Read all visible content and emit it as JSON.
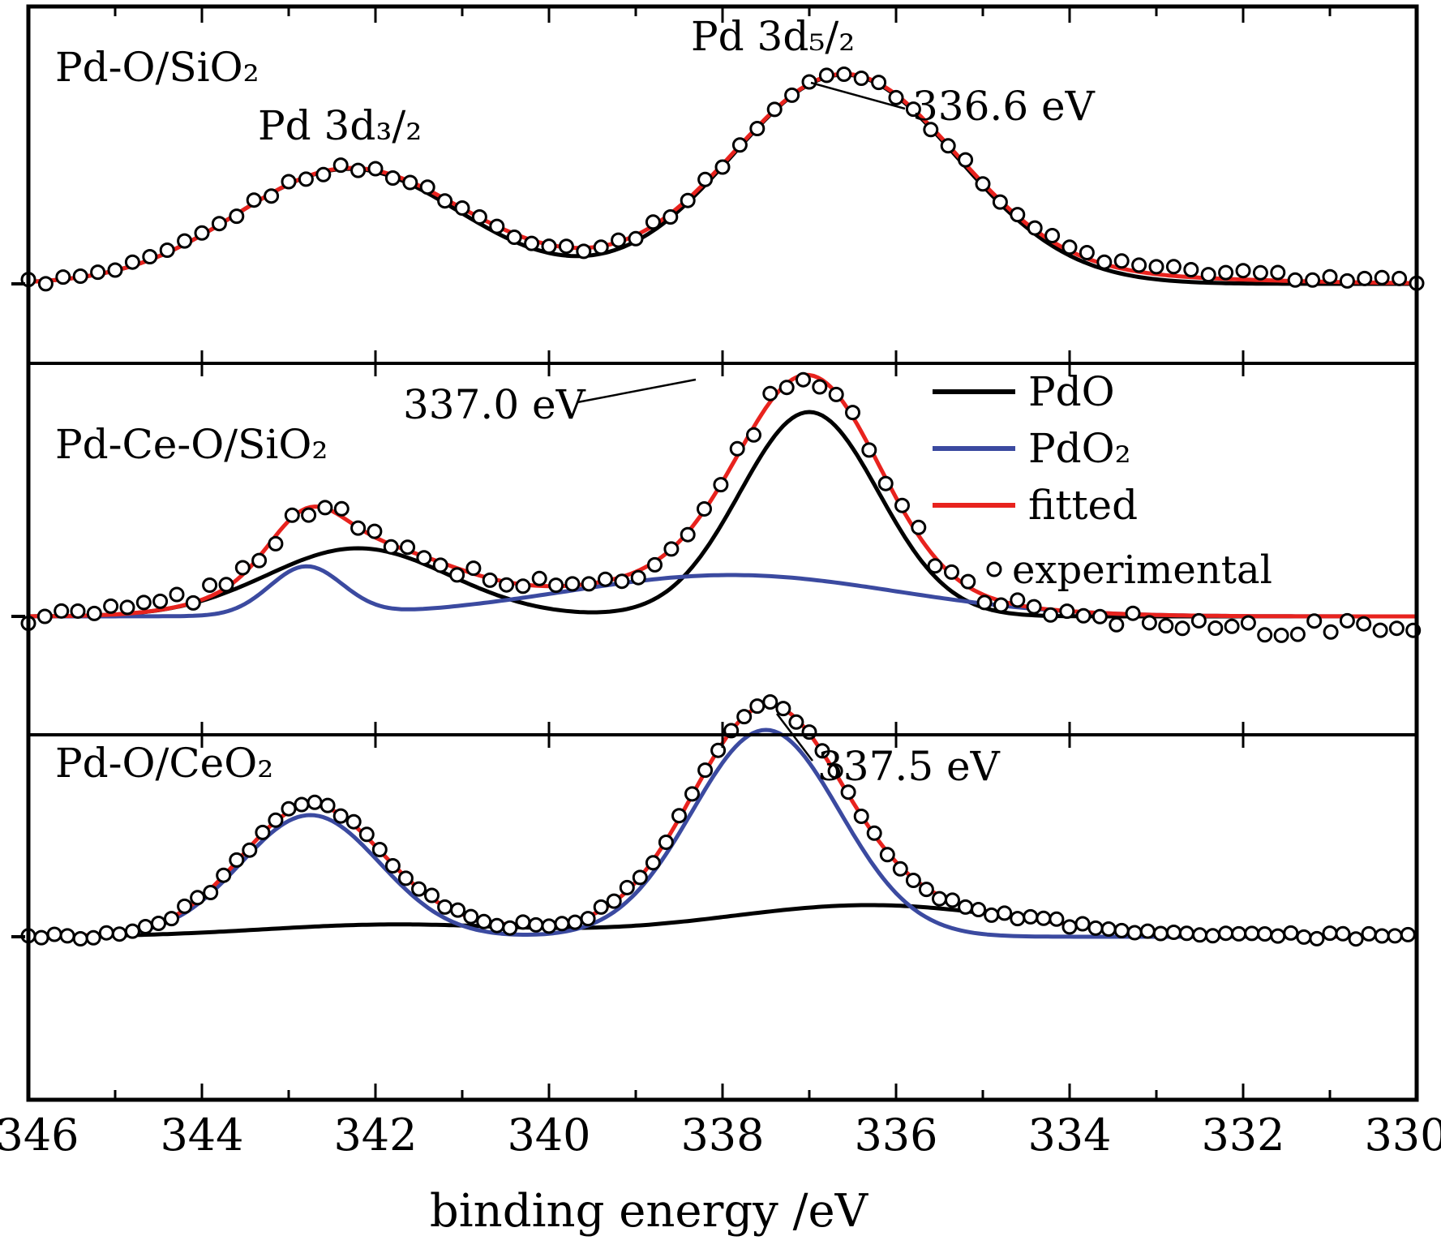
{
  "chart_data": {
    "type": "line",
    "title": "",
    "x_axis": {
      "label": "binding energy /eV",
      "min": 330,
      "max": 346,
      "reversed": true,
      "major_ticks": [
        346,
        344,
        342,
        340,
        338,
        336,
        334,
        332,
        330
      ],
      "minor_ticks": [
        345,
        343,
        341,
        339,
        337,
        335,
        333,
        331
      ],
      "tick_labels": [
        "346",
        "344",
        "342",
        "340",
        "338",
        "336",
        "334",
        "332",
        "330"
      ]
    },
    "y_axis": {
      "label": "",
      "tick_labels": []
    },
    "colors": {
      "pdo": "#000000",
      "pdo2": "#3b4aa0",
      "fitted": "#e8231e",
      "experimental_fill": "#ffffff",
      "experimental_stroke": "#000000"
    },
    "legend": {
      "items": [
        {
          "key": "pdo",
          "label": "PdO"
        },
        {
          "key": "pdo2",
          "label": "PdO₂"
        },
        {
          "key": "fitted",
          "label": "fitted"
        },
        {
          "key": "experimental",
          "label": "experimental"
        }
      ]
    },
    "panels": [
      {
        "sample": "Pd-O/SiO₂",
        "labels": {
          "d52": "Pd 3d₅/₂",
          "d32": "Pd 3d₃/₂",
          "energy": "336.6 eV"
        },
        "components": [
          {
            "key": "pdo",
            "peaks": [
              {
                "center": 336.6,
                "amplitude": 1.0,
                "sigma": 1.3
              },
              {
                "center": 342.3,
                "amplitude": 0.55,
                "sigma": 1.3
              }
            ]
          }
        ],
        "fitted_extra": [
          {
            "center": 339.9,
            "amplitude": 0.04,
            "sigma": 1.1
          },
          {
            "center": 333.2,
            "amplitude": 0.025,
            "sigma": 1.6
          }
        ],
        "experimental": {
          "step": 0.2,
          "noise": 0.018,
          "seed": 1,
          "bias_peaks": [
            {
              "center": 332.5,
              "amplitude": 0.03,
              "sigma": 1.4
            }
          ]
        }
      },
      {
        "sample": "Pd-Ce-O/SiO₂",
        "labels": {
          "energy": "337.0 eV"
        },
        "components": [
          {
            "key": "pdo",
            "peaks": [
              {
                "center": 337.0,
                "amplitude": 0.84,
                "sigma": 0.8
              },
              {
                "center": 342.2,
                "amplitude": 0.28,
                "sigma": 1.05
              }
            ]
          },
          {
            "key": "pdo2",
            "peaks": [
              {
                "center": 342.8,
                "amplitude": 0.2,
                "sigma": 0.42
              },
              {
                "center": 337.9,
                "amplitude": 0.17,
                "sigma": 1.9
              }
            ]
          }
        ],
        "fitted_extra": [],
        "experimental": {
          "step": 0.19,
          "noise": 0.035,
          "seed": 2,
          "bias_peaks": [
            {
              "center": 344.3,
              "amplitude": 0.03,
              "sigma": 0.5
            },
            {
              "center": 331.3,
              "amplitude": -0.05,
              "sigma": 1.3
            }
          ]
        }
      },
      {
        "sample": "Pd-O/CeO₂",
        "labels": {
          "energy": "337.5 eV"
        },
        "components": [
          {
            "key": "pdo",
            "peaks": [
              {
                "center": 336.3,
                "amplitude": 0.13,
                "sigma": 1.7
              },
              {
                "center": 341.8,
                "amplitude": 0.05,
                "sigma": 1.5
              }
            ]
          },
          {
            "key": "pdo2",
            "peaks": [
              {
                "center": 337.5,
                "amplitude": 0.85,
                "sigma": 0.85
              },
              {
                "center": 342.75,
                "amplitude": 0.5,
                "sigma": 0.8
              }
            ]
          }
        ],
        "fitted_extra": [],
        "experimental": {
          "step": 0.15,
          "noise": 0.015,
          "seed": 3,
          "bias_peaks": []
        }
      }
    ]
  }
}
